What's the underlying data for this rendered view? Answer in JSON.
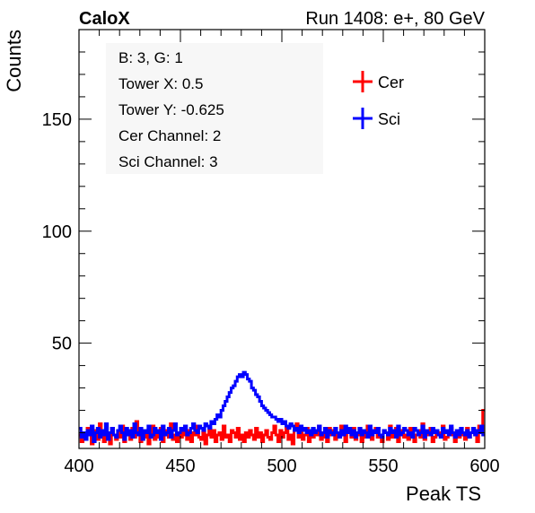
{
  "header": {
    "left": "CaloX",
    "right": "Run 1408: e+, 80 GeV"
  },
  "info_box": {
    "lines": [
      "B: 3, G: 1",
      "Tower X: 0.5",
      "Tower Y: -0.625",
      "Cer Channel: 2",
      "Sci Channel: 3"
    ]
  },
  "colors": {
    "cer": "#ff0000",
    "sci": "#0000ff",
    "axis": "#000000",
    "box": "#f7f7f7"
  },
  "chart_data": {
    "type": "line",
    "style": "step-histogram",
    "title": "",
    "xlabel": "Peak TS",
    "ylabel": "Counts",
    "xlim": [
      400,
      600
    ],
    "ylim": [
      3,
      190
    ],
    "x_ticks": [
      400,
      450,
      500,
      550,
      600
    ],
    "y_ticks": [
      50,
      100,
      150
    ],
    "legend": {
      "placement": "top-right",
      "entries": [
        "Cer",
        "Sci"
      ]
    },
    "grid": false,
    "bin_width": 1,
    "x": [
      400,
      401,
      402,
      403,
      404,
      405,
      406,
      407,
      408,
      409,
      410,
      411,
      412,
      413,
      414,
      415,
      416,
      417,
      418,
      419,
      420,
      421,
      422,
      423,
      424,
      425,
      426,
      427,
      428,
      429,
      430,
      431,
      432,
      433,
      434,
      435,
      436,
      437,
      438,
      439,
      440,
      441,
      442,
      443,
      444,
      445,
      446,
      447,
      448,
      449,
      450,
      451,
      452,
      453,
      454,
      455,
      456,
      457,
      458,
      459,
      460,
      461,
      462,
      463,
      464,
      465,
      466,
      467,
      468,
      469,
      470,
      471,
      472,
      473,
      474,
      475,
      476,
      477,
      478,
      479,
      480,
      481,
      482,
      483,
      484,
      485,
      486,
      487,
      488,
      489,
      490,
      491,
      492,
      493,
      494,
      495,
      496,
      497,
      498,
      499,
      500,
      501,
      502,
      503,
      504,
      505,
      506,
      507,
      508,
      509,
      510,
      511,
      512,
      513,
      514,
      515,
      516,
      517,
      518,
      519,
      520,
      521,
      522,
      523,
      524,
      525,
      526,
      527,
      528,
      529,
      530,
      531,
      532,
      533,
      534,
      535,
      536,
      537,
      538,
      539,
      540,
      541,
      542,
      543,
      544,
      545,
      546,
      547,
      548,
      549,
      550,
      551,
      552,
      553,
      554,
      555,
      556,
      557,
      558,
      559,
      560,
      561,
      562,
      563,
      564,
      565,
      566,
      567,
      568,
      569,
      570,
      571,
      572,
      573,
      574,
      575,
      576,
      577,
      578,
      579,
      580,
      581,
      582,
      583,
      584,
      585,
      586,
      587,
      588,
      589,
      590,
      591,
      592,
      593,
      594,
      595,
      596,
      597,
      598,
      599
    ],
    "series": [
      {
        "name": "Cer",
        "color": "#ff0000",
        "values": [
          9,
          6,
          10,
          8,
          12,
          9,
          5,
          8,
          11,
          7,
          14,
          9,
          6,
          10,
          8,
          5,
          12,
          9,
          7,
          11,
          8,
          13,
          6,
          9,
          10,
          7,
          12,
          8,
          15,
          9,
          6,
          11,
          8,
          10,
          5,
          9,
          13,
          7,
          10,
          8,
          12,
          6,
          9,
          11,
          8,
          14,
          7,
          9,
          6,
          10,
          8,
          12,
          9,
          7,
          11,
          6,
          10,
          9,
          13,
          8,
          7,
          10,
          5,
          9,
          12,
          8,
          11,
          6,
          9,
          10,
          7,
          13,
          8,
          9,
          6,
          11,
          10,
          8,
          12,
          7,
          9,
          6,
          10,
          8,
          11,
          9,
          7,
          12,
          8,
          10,
          6,
          9,
          11,
          8,
          7,
          10,
          13,
          9,
          6,
          11,
          8,
          10,
          12,
          7,
          9,
          5,
          11,
          14,
          8,
          10,
          7,
          9,
          12,
          6,
          10,
          8,
          11,
          9,
          13,
          7,
          10,
          8,
          6,
          12,
          9,
          11,
          7,
          10,
          8,
          13,
          9,
          6,
          11,
          10,
          8,
          12,
          7,
          9,
          10,
          6,
          11,
          8,
          13,
          9,
          7,
          10,
          12,
          8,
          9,
          6,
          11,
          10,
          7,
          13,
          8,
          9,
          12,
          6,
          10,
          11,
          8,
          9,
          7,
          12,
          10,
          6,
          9,
          11,
          8,
          14,
          7,
          10,
          9,
          12,
          6,
          8,
          11,
          10,
          9,
          13,
          7,
          8,
          10,
          12,
          9,
          6,
          11,
          8,
          10,
          9,
          7,
          12,
          8,
          10,
          11,
          9,
          6,
          13,
          10,
          20
        ]
      },
      {
        "name": "Sci",
        "color": "#0000ff",
        "values": [
          12,
          8,
          10,
          7,
          11,
          9,
          13,
          6,
          10,
          12,
          8,
          11,
          9,
          14,
          7,
          10,
          12,
          9,
          8,
          11,
          13,
          10,
          7,
          12,
          9,
          11,
          8,
          14,
          10,
          9,
          12,
          7,
          11,
          10,
          13,
          8,
          9,
          12,
          10,
          11,
          7,
          13,
          9,
          10,
          12,
          8,
          11,
          14,
          9,
          10,
          12,
          11,
          13,
          9,
          10,
          12,
          14,
          11,
          10,
          13,
          12,
          11,
          14,
          13,
          12,
          15,
          14,
          16,
          18,
          17,
          20,
          22,
          24,
          26,
          28,
          30,
          31,
          33,
          35,
          36,
          35,
          37,
          36,
          34,
          33,
          30,
          29,
          27,
          26,
          24,
          22,
          21,
          20,
          19,
          18,
          17,
          17,
          16,
          15,
          16,
          14,
          15,
          13,
          12,
          14,
          13,
          11,
          12,
          10,
          13,
          11,
          12,
          10,
          11,
          9,
          12,
          10,
          11,
          13,
          9,
          10,
          12,
          8,
          11,
          10,
          9,
          12,
          10,
          8,
          11,
          9,
          13,
          10,
          12,
          9,
          11,
          8,
          10,
          12,
          9,
          11,
          10,
          8,
          13,
          9,
          11,
          10,
          12,
          9,
          8,
          11,
          10,
          9,
          12,
          10,
          11,
          8,
          13,
          9,
          10,
          12,
          11,
          9,
          10,
          8,
          12,
          11,
          9,
          10,
          13,
          8,
          11,
          10,
          9,
          12,
          10,
          11,
          9,
          8,
          12,
          10,
          11,
          9,
          13,
          10,
          8,
          11,
          9,
          12,
          10,
          9,
          11,
          8,
          10,
          12,
          9,
          11,
          10,
          13,
          9
        ]
      }
    ]
  }
}
